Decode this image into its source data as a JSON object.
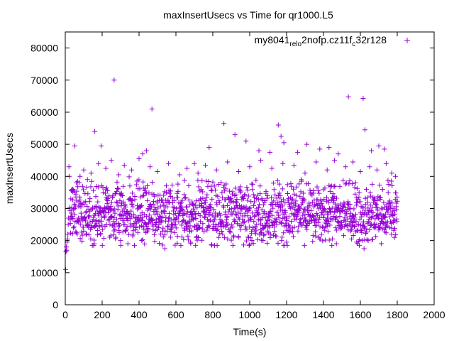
{
  "chart_data": {
    "type": "scatter",
    "title": "maxInsertUsecs vs Time for qr1000.L5",
    "xlabel": "Time(s)",
    "ylabel": "maxInsertUsecs",
    "xlim": [
      0,
      2000
    ],
    "ylim": [
      0,
      85000
    ],
    "xticks": [
      0,
      200,
      400,
      600,
      800,
      1000,
      1200,
      1400,
      1600,
      1800,
      2000
    ],
    "yticks": [
      0,
      10000,
      20000,
      30000,
      40000,
      50000,
      60000,
      70000,
      80000
    ],
    "grid": false,
    "legend_position": "top-right",
    "marker": "+",
    "series": [
      {
        "name": "my8041_rel_o2nofp.cz11f_c32r128",
        "legend_parts": [
          {
            "text": "my8041",
            "sub": false
          },
          {
            "text": "rel",
            "sub": true
          },
          {
            "text": "o",
            "sub": true
          },
          {
            "text": "2nofp.cz11f",
            "sub": false
          },
          {
            "text": "c",
            "sub": true
          },
          {
            "text": "32r128",
            "sub": false
          }
        ],
        "color": "#9400d3",
        "points": [
          [
            2,
            11000
          ],
          [
            4,
            16500
          ],
          [
            6,
            18000
          ],
          [
            8,
            17000
          ],
          [
            10,
            19500
          ],
          [
            12,
            20500
          ],
          [
            14,
            22000
          ],
          [
            16,
            25000
          ],
          [
            18,
            27000
          ],
          [
            20,
            43000
          ],
          [
            22,
            40000
          ],
          [
            52,
            49500
          ],
          [
            160,
            54000
          ],
          [
            195,
            49500
          ],
          [
            265,
            70000
          ],
          [
            470,
            61000
          ],
          [
            420,
            47000
          ],
          [
            440,
            48000
          ],
          [
            700,
            44000
          ],
          [
            780,
            49000
          ],
          [
            860,
            56500
          ],
          [
            920,
            53000
          ],
          [
            980,
            51000
          ],
          [
            1050,
            48000
          ],
          [
            1110,
            47500
          ],
          [
            1155,
            56000
          ],
          [
            1170,
            52500
          ],
          [
            1185,
            50500
          ],
          [
            1260,
            47500
          ],
          [
            1310,
            50000
          ],
          [
            1380,
            48500
          ],
          [
            1430,
            49000
          ],
          [
            1480,
            47000
          ],
          [
            1535,
            64800
          ],
          [
            1615,
            64300
          ],
          [
            1625,
            54500
          ],
          [
            1660,
            48000
          ],
          [
            1700,
            49500
          ],
          [
            1730,
            48500
          ],
          [
            540,
            17500
          ],
          [
            1620,
            17500
          ],
          [
            1470,
            19000
          ],
          [
            1580,
            19500
          ],
          [
            300,
            20000
          ],
          [
            1380,
            20500
          ],
          [
            1200,
            19500
          ],
          [
            30,
            33000
          ],
          [
            40,
            36000
          ],
          [
            60,
            38000
          ],
          [
            80,
            40000
          ],
          [
            100,
            42000
          ],
          [
            120,
            39000
          ],
          [
            140,
            41000
          ],
          [
            180,
            44000
          ],
          [
            220,
            42500
          ],
          [
            250,
            45000
          ],
          [
            290,
            40500
          ],
          [
            320,
            43500
          ],
          [
            360,
            42000
          ],
          [
            400,
            45500
          ],
          [
            460,
            43000
          ],
          [
            500,
            41500
          ],
          [
            560,
            44000
          ],
          [
            620,
            40500
          ],
          [
            660,
            42500
          ],
          [
            720,
            41000
          ],
          [
            760,
            43500
          ],
          [
            820,
            42000
          ],
          [
            880,
            44500
          ],
          [
            940,
            41500
          ],
          [
            1000,
            43000
          ],
          [
            1060,
            45000
          ],
          [
            1120,
            42500
          ],
          [
            1180,
            44000
          ],
          [
            1240,
            43500
          ],
          [
            1300,
            41000
          ],
          [
            1360,
            44500
          ],
          [
            1420,
            42000
          ],
          [
            1460,
            45000
          ],
          [
            1520,
            43000
          ],
          [
            1560,
            44500
          ],
          [
            1600,
            41500
          ],
          [
            1650,
            43000
          ],
          [
            1690,
            42000
          ],
          [
            1740,
            44000
          ],
          [
            1770,
            41000
          ],
          [
            1790,
            40000
          ]
        ]
      }
    ]
  }
}
